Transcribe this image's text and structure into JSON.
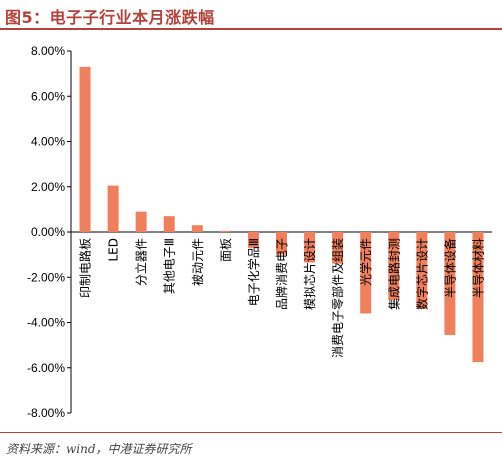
{
  "title": "图5：电子子行业本月涨跌幅",
  "source": "资料来源：wind，中港证券研究所",
  "colors": {
    "bar": "#f07f5b",
    "title": "#b4413a",
    "axis": "#000000"
  },
  "chart_data": {
    "type": "bar",
    "categories": [
      "印制电路板",
      "LED",
      "分立器件",
      "其他电子Ⅲ",
      "被动元件",
      "面板",
      "电子化学品Ⅲ",
      "品牌消费电子",
      "模拟芯片设计",
      "消费电子零部件及组装",
      "光学元件",
      "集成电路封测",
      "数字芯片设计",
      "半导体设备",
      "半导体材料"
    ],
    "series": [
      {
        "values": [
          7.3,
          2.05,
          0.9,
          0.7,
          0.3,
          0.05,
          -0.7,
          -1.0,
          -1.35,
          -1.4,
          -3.6,
          -3.0,
          -3.4,
          -4.55,
          -5.75
        ]
      }
    ],
    "ylim": [
      -8,
      8
    ],
    "yticks": [
      "-8.00%",
      "-6.00%",
      "-4.00%",
      "-2.00%",
      "0.00%",
      "2.00%",
      "4.00%",
      "6.00%",
      "8.00%"
    ],
    "ytick_values": [
      -8,
      -6,
      -4,
      -2,
      0,
      2,
      4,
      6,
      8
    ],
    "grid": false,
    "legend": false
  }
}
